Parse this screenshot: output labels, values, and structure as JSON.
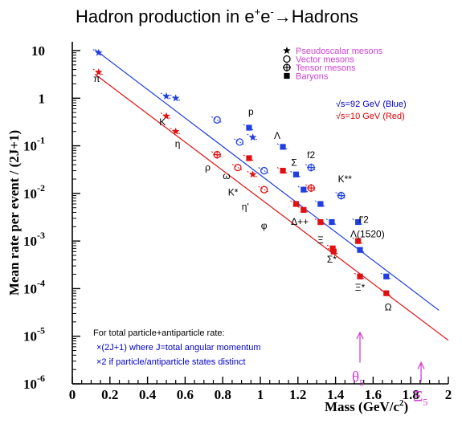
{
  "chart_data": {
    "type": "scatter",
    "title_main": "Hadron production in e",
    "title_sup1": "+",
    "title_mid": "e",
    "title_sup2": "-",
    "title_end": "→Hadrons",
    "xlabel": "Mass (GeV/c",
    "xlabel_sup": "2",
    "xlabel_end": ")",
    "ylabel": "Mean rate per event / (2J+1)",
    "xlim": [
      0,
      2
    ],
    "ylim_log10": [
      -6,
      1
    ],
    "log_y": true,
    "x_ticks": [
      "0",
      "0.2",
      "0.4",
      "0.6",
      "0.8",
      "1",
      "1.2",
      "1.4",
      "1.6",
      "1.8",
      "2"
    ],
    "y_ticks": [
      {
        "base": "10",
        "exp": ""
      },
      {
        "base": "1",
        "exp": ""
      },
      {
        "base": "10",
        "exp": "-1"
      },
      {
        "base": "10",
        "exp": "-2"
      },
      {
        "base": "10",
        "exp": "-3"
      },
      {
        "base": "10",
        "exp": "-4"
      },
      {
        "base": "10",
        "exp": "-5"
      },
      {
        "base": "10",
        "exp": "-6"
      }
    ],
    "legend": [
      {
        "marker": "star",
        "label": "Pseudoscalar mesons"
      },
      {
        "marker": "circle",
        "label": "Vector mesons"
      },
      {
        "marker": "cross-circle",
        "label": "Tensor mesons"
      },
      {
        "marker": "square",
        "label": "Baryons"
      }
    ],
    "energy_labels": [
      {
        "text": "√s=92 GeV (Blue)",
        "color": "#0000cc"
      },
      {
        "text": "√s=10 GeV (Red)",
        "color": "#dd0000"
      }
    ],
    "colors": {
      "blue": "#1f3fe0",
      "red": "#e01010",
      "magenta": "#d040d0",
      "axis": "#000000"
    },
    "series": [
      {
        "name": "√s=92 GeV (Blue)",
        "color": "#1f3fe0",
        "points": [
          {
            "x": 0.14,
            "y": 9.0,
            "marker": "star"
          },
          {
            "x": 0.5,
            "y": 1.1,
            "marker": "star"
          },
          {
            "x": 0.55,
            "y": 1.0,
            "marker": "star"
          },
          {
            "x": 0.77,
            "y": 0.35,
            "marker": "circle"
          },
          {
            "x": 0.89,
            "y": 0.12,
            "marker": "circle"
          },
          {
            "x": 0.96,
            "y": 0.15,
            "marker": "star"
          },
          {
            "x": 1.02,
            "y": 0.03,
            "marker": "circle"
          },
          {
            "x": 0.94,
            "y": 0.24,
            "marker": "square"
          },
          {
            "x": 1.12,
            "y": 0.095,
            "marker": "square"
          },
          {
            "x": 1.19,
            "y": 0.025,
            "marker": "square"
          },
          {
            "x": 1.23,
            "y": 0.012,
            "marker": "square"
          },
          {
            "x": 1.32,
            "y": 0.006,
            "marker": "square"
          },
          {
            "x": 1.38,
            "y": 0.0025,
            "marker": "square"
          },
          {
            "x": 1.53,
            "y": 0.00065,
            "marker": "square"
          },
          {
            "x": 1.52,
            "y": 0.0025,
            "marker": "square"
          },
          {
            "x": 1.67,
            "y": 0.00018,
            "marker": "square"
          },
          {
            "x": 1.27,
            "y": 0.035,
            "marker": "cross-circle"
          },
          {
            "x": 1.43,
            "y": 0.009,
            "marker": "cross-circle"
          }
        ],
        "fit_line": {
          "x": [
            0.12,
            1.95
          ],
          "y": [
            10.5,
            3.5e-05
          ]
        }
      },
      {
        "name": "√s=10 GeV (Red)",
        "color": "#e01010",
        "points": [
          {
            "x": 0.14,
            "y": 3.5,
            "marker": "star"
          },
          {
            "x": 0.5,
            "y": 0.42,
            "marker": "star"
          },
          {
            "x": 0.55,
            "y": 0.2,
            "marker": "star"
          },
          {
            "x": 0.77,
            "y": 0.065,
            "marker": "cross-circle"
          },
          {
            "x": 0.88,
            "y": 0.035,
            "marker": "circle"
          },
          {
            "x": 0.96,
            "y": 0.025,
            "marker": "star"
          },
          {
            "x": 1.02,
            "y": 0.012,
            "marker": "circle"
          },
          {
            "x": 0.94,
            "y": 0.055,
            "marker": "square"
          },
          {
            "x": 1.12,
            "y": 0.03,
            "marker": "square"
          },
          {
            "x": 1.19,
            "y": 0.006,
            "marker": "square"
          },
          {
            "x": 1.23,
            "y": 0.0045,
            "marker": "square"
          },
          {
            "x": 1.32,
            "y": 0.0025,
            "marker": "square"
          },
          {
            "x": 1.385,
            "y": 0.0007,
            "marker": "square"
          },
          {
            "x": 1.39,
            "y": 0.0006,
            "marker": "square"
          },
          {
            "x": 1.52,
            "y": 0.001,
            "marker": "square"
          },
          {
            "x": 1.53,
            "y": 0.00018,
            "marker": "square"
          },
          {
            "x": 1.67,
            "y": 8e-05,
            "marker": "square"
          },
          {
            "x": 1.27,
            "y": 0.013,
            "marker": "cross-circle"
          }
        ],
        "fit_line": {
          "x": [
            0.12,
            2.0
          ],
          "y": [
            3.2,
            8.2e-06
          ]
        }
      }
    ],
    "particle_labels": [
      {
        "text": "π",
        "x": 0.13,
        "y": 2.2,
        "color": "#000000"
      },
      {
        "text": "K",
        "x": 0.48,
        "y": 0.27,
        "color": "#000000"
      },
      {
        "text": "η",
        "x": 0.56,
        "y": 0.095,
        "color": "#000000"
      },
      {
        "text": "ρ",
        "x": 0.72,
        "y": 0.03,
        "color": "#000000"
      },
      {
        "text": "ω",
        "x": 0.82,
        "y": 0.02,
        "color": "#000000"
      },
      {
        "text": "K*",
        "x": 0.855,
        "y": 0.009,
        "color": "#000000"
      },
      {
        "text": "p",
        "x": 0.95,
        "y": 0.45,
        "color": "#000000"
      },
      {
        "text": "η'",
        "x": 0.92,
        "y": 0.0045,
        "color": "#000000"
      },
      {
        "text": "φ",
        "x": 1.02,
        "y": 0.0018,
        "color": "#000000"
      },
      {
        "text": "Λ",
        "x": 1.09,
        "y": 0.14,
        "color": "#000000"
      },
      {
        "text": "Σ",
        "x": 1.18,
        "y": 0.038,
        "color": "#000000"
      },
      {
        "text": "f2",
        "x": 1.27,
        "y": 0.055,
        "color": "#000000"
      },
      {
        "text": "K**",
        "x": 1.45,
        "y": 0.017,
        "color": "#000000"
      },
      {
        "text": "Δ++",
        "x": 1.21,
        "y": 0.0022,
        "color": "#000000"
      },
      {
        "text": "f'2",
        "x": 1.55,
        "y": 0.0024,
        "color": "#000000"
      },
      {
        "text": "Λ(1520)",
        "x": 1.57,
        "y": 0.0012,
        "color": "#000000"
      },
      {
        "text": "Ξ",
        "x": 1.32,
        "y": 0.0009,
        "color": "#000000"
      },
      {
        "text": "Σ*",
        "x": 1.38,
        "y": 0.00035,
        "color": "#000000"
      },
      {
        "text": "Ξ*",
        "x": 1.53,
        "y": 9e-05,
        "color": "#000000"
      },
      {
        "text": "Ω",
        "x": 1.68,
        "y": 3.5e-05,
        "color": "#000000"
      }
    ],
    "arrows": [
      {
        "label": "θ",
        "sub": "5",
        "x": 1.53,
        "y_tip": 1.2e-05,
        "y_tail": 2.8e-06,
        "color": "#d040d0"
      },
      {
        "label": "Ξ",
        "sub": "5",
        "x": 1.855,
        "y_tip": 2.8e-06,
        "y_tail": 1.1e-06,
        "color": "#d040d0"
      }
    ],
    "notes": [
      {
        "text": "For total particle+antiparticle rate:",
        "color": "#000000"
      },
      {
        "text": "×(2J+1)   where J=total angular momentum",
        "color": "#0000cc"
      },
      {
        "text": "×2   if particle/antiparticle states distinct",
        "color": "#0000cc"
      }
    ]
  }
}
